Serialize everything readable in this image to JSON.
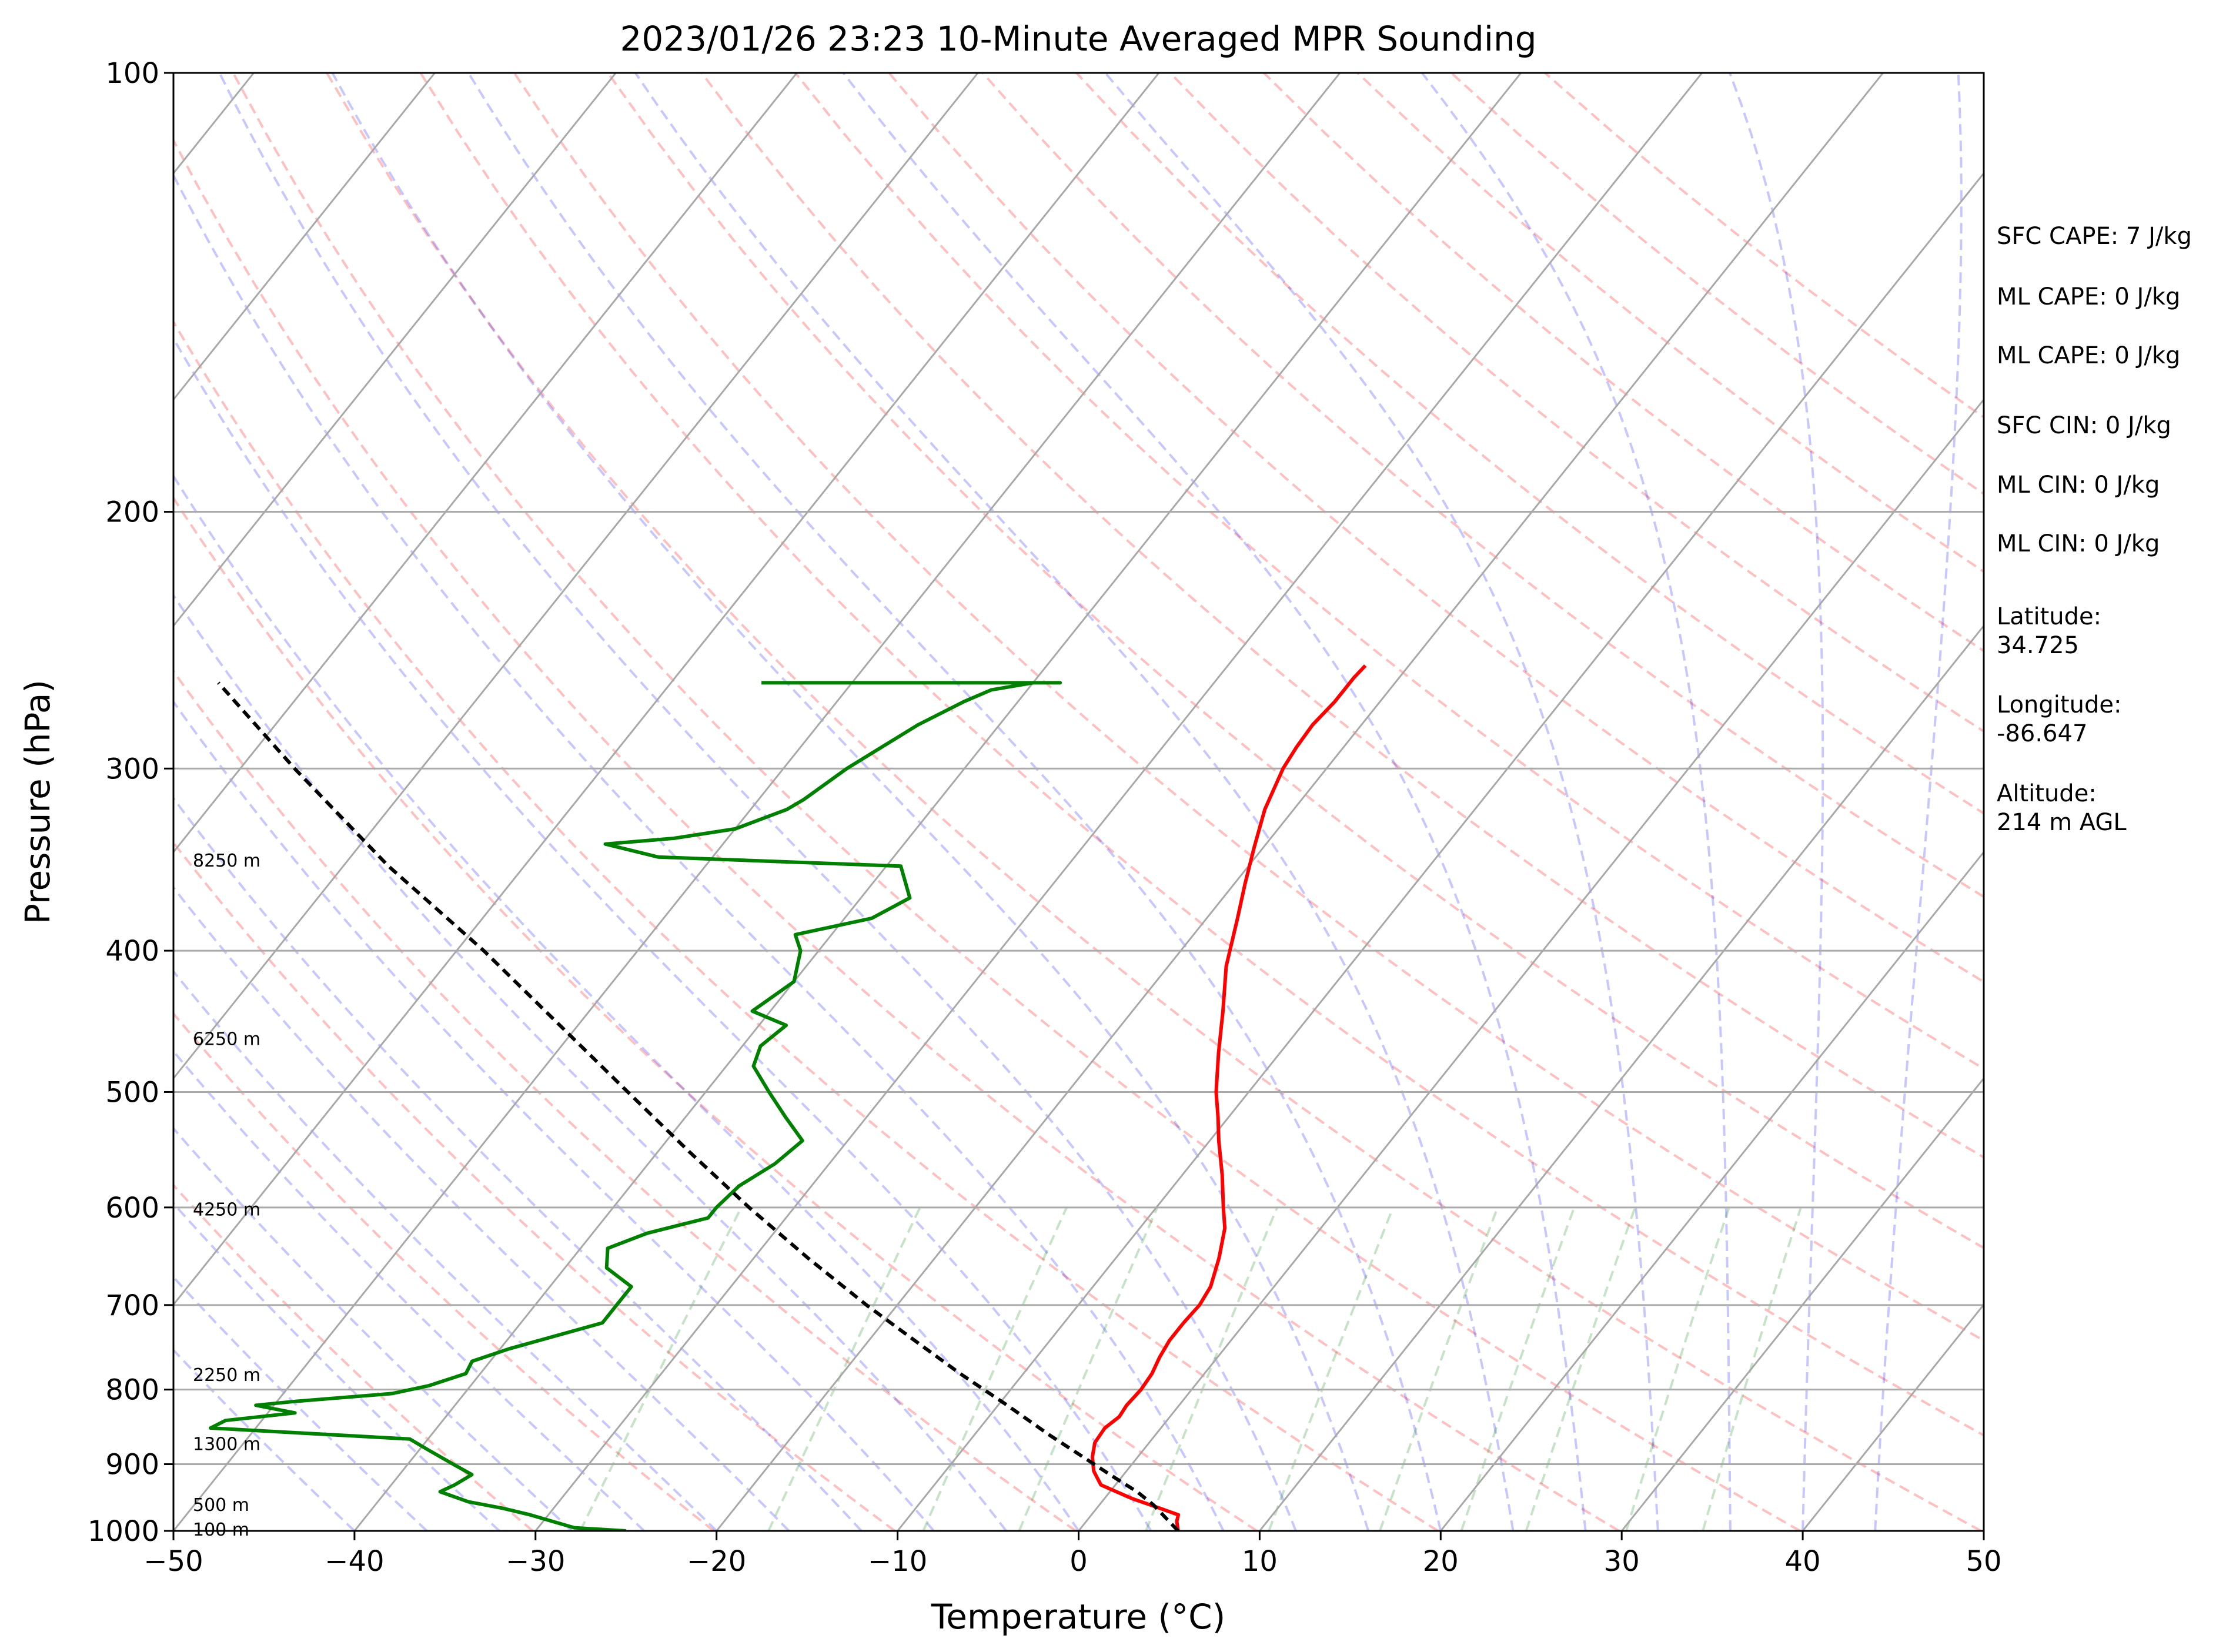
{
  "chart_data": {
    "type": "skew-t",
    "title": "2023/01/26 23:23 10-Minute Averaged MPR Sounding",
    "xlabel": "Temperature (°C)",
    "ylabel": "Pressure (hPa)",
    "xlim": [
      -50,
      50
    ],
    "ylim": [
      1000,
      100
    ],
    "y_scale": "log",
    "x_ticks": [
      "−50",
      "−40",
      "−30",
      "−20",
      "−10",
      "0",
      "10",
      "20",
      "30",
      "40",
      "50"
    ],
    "y_ticks": [
      "100",
      "200",
      "300",
      "400",
      "500",
      "600",
      "700",
      "800",
      "900",
      "1000"
    ],
    "height_labels": [
      "8250 m",
      "6250 m",
      "4250 m",
      "2250 m",
      "1300 m",
      "500 m",
      "100 m"
    ],
    "stats": {
      "sfc_cape": "SFC CAPE: 7 J/kg",
      "ml_cape_1": "ML CAPE: 0 J/kg",
      "ml_cape_2": "ML CAPE: 0 J/kg",
      "sfc_cin": "SFC CIN: 0 J/kg",
      "ml_cin_1": "ML CIN: 0 J/kg",
      "ml_cin_2": "ML CIN: 0 J/kg",
      "latitude_label": "Latitude:",
      "latitude_value": "34.725",
      "longitude_label": "Longitude:",
      "longitude_value": "-86.647",
      "altitude_label": "Altitude:",
      "altitude_value": "214 m AGL"
    },
    "series": [
      {
        "kind": "temperature",
        "color": "#ff0000",
        "points": [
          [
            1000,
            5.5
          ],
          [
            985,
            5.0
          ],
          [
            975,
            4.8
          ],
          [
            965,
            3.5
          ],
          [
            950,
            1.5
          ],
          [
            930,
            -0.8
          ],
          [
            910,
            -1.8
          ],
          [
            890,
            -2.5
          ],
          [
            870,
            -3.0
          ],
          [
            850,
            -3.1
          ],
          [
            835,
            -2.8
          ],
          [
            820,
            -2.9
          ],
          [
            800,
            -2.8
          ],
          [
            780,
            -2.9
          ],
          [
            760,
            -3.2
          ],
          [
            740,
            -3.4
          ],
          [
            720,
            -3.4
          ],
          [
            700,
            -3.3
          ],
          [
            680,
            -3.5
          ],
          [
            650,
            -4.3
          ],
          [
            620,
            -5.3
          ],
          [
            600,
            -6.3
          ],
          [
            570,
            -7.8
          ],
          [
            540,
            -9.5
          ],
          [
            520,
            -10.6
          ],
          [
            500,
            -11.8
          ],
          [
            470,
            -13.4
          ],
          [
            440,
            -15.0
          ],
          [
            410,
            -16.8
          ],
          [
            380,
            -18.3
          ],
          [
            360,
            -19.4
          ],
          [
            340,
            -20.5
          ],
          [
            320,
            -21.6
          ],
          [
            300,
            -22.4
          ],
          [
            290,
            -22.6
          ],
          [
            280,
            -22.7
          ],
          [
            270,
            -22.5
          ],
          [
            260,
            -22.5
          ],
          [
            255,
            -22.4
          ]
        ]
      },
      {
        "kind": "dewpoint",
        "color": "#008000",
        "points": [
          [
            1000,
            -25.0
          ],
          [
            995,
            -28.0
          ],
          [
            975,
            -31.0
          ],
          [
            965,
            -32.8
          ],
          [
            955,
            -35.0
          ],
          [
            940,
            -37.0
          ],
          [
            930,
            -36.5
          ],
          [
            915,
            -36.0
          ],
          [
            900,
            -37.5
          ],
          [
            880,
            -39.5
          ],
          [
            865,
            -41.0
          ],
          [
            850,
            -52.5
          ],
          [
            840,
            -52.0
          ],
          [
            830,
            -48.5
          ],
          [
            820,
            -51.0
          ],
          [
            815,
            -49.0
          ],
          [
            805,
            -44.0
          ],
          [
            795,
            -42.3
          ],
          [
            780,
            -40.8
          ],
          [
            765,
            -41.0
          ],
          [
            750,
            -39.5
          ],
          [
            720,
            -35.5
          ],
          [
            700,
            -35.5
          ],
          [
            680,
            -35.5
          ],
          [
            660,
            -37.7
          ],
          [
            640,
            -38.5
          ],
          [
            625,
            -37.0
          ],
          [
            610,
            -34.3
          ],
          [
            600,
            -34.3
          ],
          [
            580,
            -34.0
          ],
          [
            560,
            -33.0
          ],
          [
            540,
            -32.5
          ],
          [
            520,
            -34.5
          ],
          [
            500,
            -36.5
          ],
          [
            480,
            -38.5
          ],
          [
            465,
            -39.0
          ],
          [
            450,
            -38.5
          ],
          [
            440,
            -41.0
          ],
          [
            420,
            -40.0
          ],
          [
            400,
            -41.0
          ],
          [
            390,
            -42.0
          ],
          [
            380,
            -38.5
          ],
          [
            368,
            -37.3
          ],
          [
            350,
            -39.2
          ],
          [
            345,
            -53.0
          ],
          [
            338,
            -56.5
          ],
          [
            335,
            -53.0
          ],
          [
            330,
            -50.0
          ],
          [
            320,
            -48.0
          ],
          [
            315,
            -47.5
          ],
          [
            300,
            -46.5
          ],
          [
            280,
            -44.5
          ],
          [
            270,
            -43.0
          ],
          [
            265,
            -42.0
          ],
          [
            262,
            -40.0
          ],
          [
            262,
            -38.5
          ],
          [
            262,
            -55.0
          ]
        ]
      },
      {
        "kind": "parcel",
        "color": "#000000",
        "points": [
          [
            1000,
            5.5
          ],
          [
            960,
            3.0
          ],
          [
            940,
            1.5
          ],
          [
            920,
            -0.3
          ],
          [
            890,
            -3.0
          ],
          [
            860,
            -5.8
          ],
          [
            820,
            -9.5
          ],
          [
            780,
            -13.5
          ],
          [
            740,
            -17.5
          ],
          [
            700,
            -21.7
          ],
          [
            650,
            -27.0
          ],
          [
            600,
            -32.5
          ],
          [
            550,
            -38.2
          ],
          [
            500,
            -44.3
          ],
          [
            450,
            -51.0
          ],
          [
            400,
            -58.5
          ],
          [
            350,
            -67.5
          ],
          [
            300,
            -77.0
          ],
          [
            262,
            -85.0
          ]
        ]
      }
    ]
  }
}
